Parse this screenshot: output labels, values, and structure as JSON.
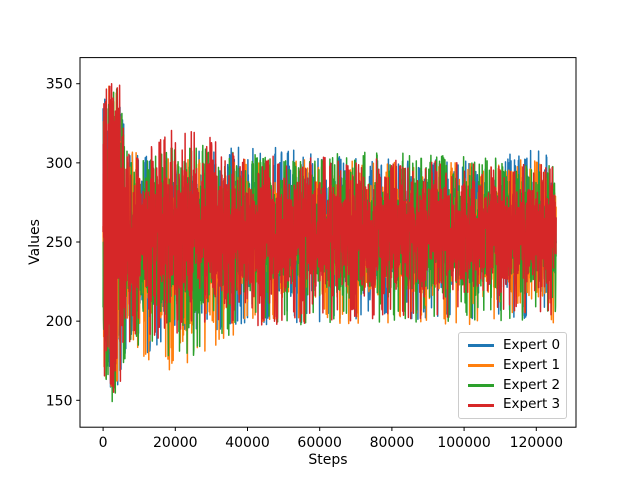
{
  "chart_data": {
    "type": "line",
    "title": "",
    "xlabel": "Steps",
    "ylabel": "Values",
    "xlim": [
      -6400,
      131000
    ],
    "ylim": [
      133,
      366.5
    ],
    "xticks": [
      0,
      20000,
      40000,
      60000,
      80000,
      100000,
      120000
    ],
    "yticks": [
      150,
      200,
      250,
      300,
      350
    ],
    "grid": false,
    "legend_position": "lower right",
    "x_max_steps": 125500,
    "description": "Four dense high-frequency noise traces. Wide initial burst (~150-356) for steps 0-6000, then band narrows to roughly 200-310 and slowly tightens toward 210-300 by step 125500. Red (Expert 3) drawn last forms the solid core; other colors appear as fringe spikes. Values below are per-series min/max envelope estimates read from the pixels at the control steps in envelope_x.",
    "envelope_x": [
      0,
      2000,
      4500,
      6500,
      9000,
      12000,
      20000,
      40000,
      70000,
      100000,
      125500
    ],
    "series": [
      {
        "name": "Expert 0",
        "color": "#1f77b4",
        "env_min": [
          168,
          158,
          160,
          192,
          196,
          186,
          200,
          206,
          208,
          209,
          210
        ],
        "env_max": [
          338,
          350,
          346,
          312,
          306,
          305,
          306,
          312,
          303,
          302,
          310
        ]
      },
      {
        "name": "Expert 1",
        "color": "#ff7f0e",
        "env_min": [
          162,
          155,
          157,
          190,
          194,
          179,
          178,
          205,
          206,
          207,
          205
        ],
        "env_max": [
          342,
          352,
          348,
          314,
          308,
          314,
          303,
          303,
          302,
          300,
          303
        ]
      },
      {
        "name": "Expert 2",
        "color": "#2ca02c",
        "env_min": [
          160,
          148,
          152,
          188,
          192,
          192,
          181,
          206,
          207,
          209,
          210
        ],
        "env_max": [
          344,
          351,
          349,
          312,
          307,
          305,
          315,
          305,
          307,
          305,
          300
        ]
      },
      {
        "name": "Expert 3",
        "color": "#d62728",
        "env_min": [
          165,
          152,
          155,
          192,
          196,
          194,
          201,
          206,
          208,
          210,
          211
        ],
        "env_max": [
          350,
          356,
          352,
          310,
          306,
          308,
          327,
          305,
          303,
          301,
          299
        ]
      }
    ]
  }
}
